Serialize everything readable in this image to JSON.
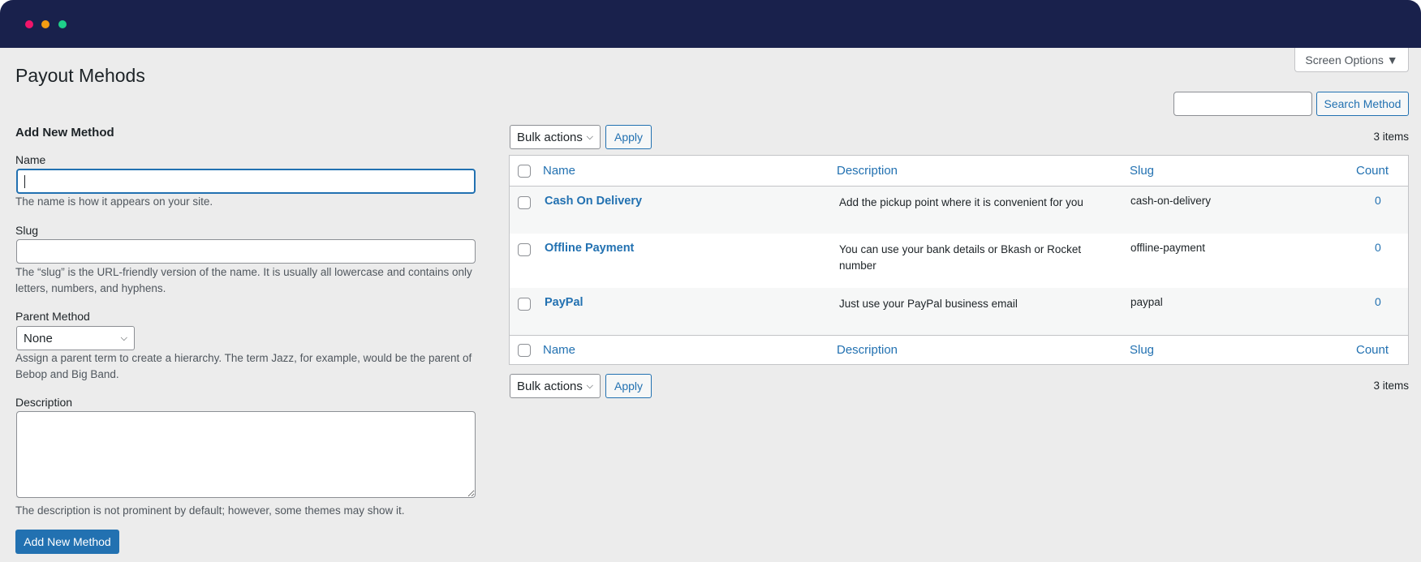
{
  "window": {
    "controls": {
      "close": "#f0146a",
      "minimize": "#f39c12",
      "maximize": "#1ed08a"
    },
    "header_color": "#19214c"
  },
  "page": {
    "title": "Payout Mehods",
    "screen_options": "Screen Options ▼"
  },
  "search": {
    "value": "",
    "button": "Search Method"
  },
  "form": {
    "heading": "Add New Method",
    "name_label": "Name",
    "name_value": "",
    "name_help": "The name is how it appears on your site.",
    "slug_label": "Slug",
    "slug_value": "",
    "slug_help": "The “slug” is the URL-friendly version of the name. It is usually all lowercase and contains only letters, numbers, and hyphens.",
    "parent_label": "Parent Method",
    "parent_value": "None",
    "parent_help": "Assign a parent term to create a hierarchy. The term Jazz, for example, would be the parent of Bebop and Big Band.",
    "desc_label": "Description",
    "desc_value": "",
    "desc_help": "The description is not prominent by default; however, some themes may show it.",
    "submit": "Add New Method"
  },
  "list": {
    "bulk_actions": "Bulk actions",
    "apply": "Apply",
    "item_count": "3 items",
    "columns": {
      "name": "Name",
      "description": "Description",
      "slug": "Slug",
      "count": "Count"
    },
    "rows": [
      {
        "name": "Cash On Delivery",
        "description": "Add the pickup point where it is convenient for you",
        "slug": "cash-on-delivery",
        "count": "0"
      },
      {
        "name": "Offline Payment",
        "description": "You can use your bank details or Bkash or Rocket number",
        "slug": "offline-payment",
        "count": "0"
      },
      {
        "name": "PayPal",
        "description": "Just use your PayPal business email",
        "slug": "paypal",
        "count": "0"
      }
    ]
  },
  "colors": {
    "accent": "#2271b1",
    "primary_button": "#2271b1",
    "background": "#ececec"
  }
}
